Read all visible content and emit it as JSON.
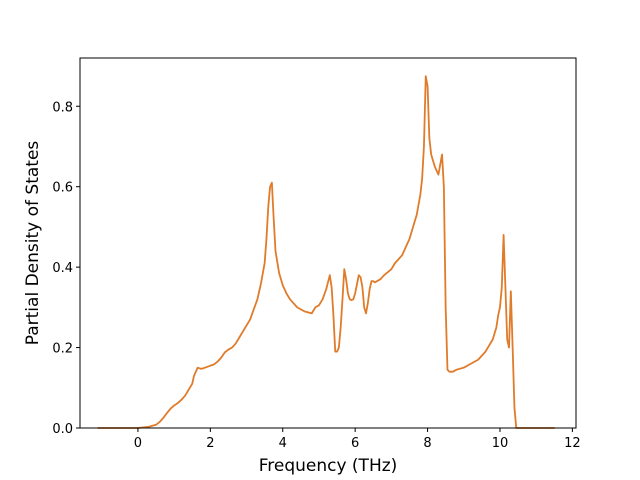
{
  "chart_data": {
    "type": "line",
    "title": "",
    "xlabel": "Frequency (THz)",
    "ylabel": "Partial Density of States",
    "xlim": [
      -1.6,
      12.1
    ],
    "ylim": [
      0.0,
      0.92
    ],
    "xticks": [
      0,
      2,
      4,
      6,
      8,
      10,
      12
    ],
    "yticks": [
      0.0,
      0.2,
      0.4,
      0.6,
      0.8
    ],
    "xtick_labels": [
      "0",
      "2",
      "4",
      "6",
      "8",
      "10",
      "12"
    ],
    "ytick_labels": [
      "0.0",
      "0.2",
      "0.4",
      "0.6",
      "0.8"
    ],
    "grid": false,
    "legend": "none",
    "series": [
      {
        "color": "#e07b2a",
        "x": [
          -1.1,
          0.0,
          0.3,
          0.5,
          0.6,
          0.7,
          0.8,
          0.9,
          1.0,
          1.1,
          1.2,
          1.3,
          1.4,
          1.5,
          1.55,
          1.65,
          1.75,
          1.85,
          2.0,
          2.1,
          2.2,
          2.3,
          2.4,
          2.5,
          2.6,
          2.7,
          2.8,
          3.0,
          3.1,
          3.2,
          3.3,
          3.4,
          3.5,
          3.55,
          3.6,
          3.65,
          3.7,
          3.75,
          3.8,
          3.9,
          4.0,
          4.1,
          4.2,
          4.4,
          4.6,
          4.8,
          4.9,
          5.0,
          5.1,
          5.2,
          5.3,
          5.35,
          5.4,
          5.45,
          5.5,
          5.55,
          5.6,
          5.65,
          5.7,
          5.75,
          5.8,
          5.85,
          5.9,
          5.95,
          6.0,
          6.1,
          6.15,
          6.2,
          6.25,
          6.3,
          6.35,
          6.4,
          6.45,
          6.5,
          6.55,
          6.6,
          6.7,
          6.8,
          7.0,
          7.1,
          7.2,
          7.3,
          7.4,
          7.5,
          7.6,
          7.7,
          7.8,
          7.85,
          7.9,
          7.95,
          8.0,
          8.05,
          8.1,
          8.2,
          8.3,
          8.4,
          8.45,
          8.5,
          8.55,
          8.6,
          8.7,
          8.8,
          9.0,
          9.2,
          9.4,
          9.6,
          9.8,
          9.9,
          9.95,
          10.0,
          10.05,
          10.1,
          10.15,
          10.2,
          10.25,
          10.3,
          10.35,
          10.4,
          10.45,
          11.5
        ],
        "values": [
          0.0,
          0.0,
          0.003,
          0.008,
          0.015,
          0.025,
          0.037,
          0.048,
          0.056,
          0.062,
          0.07,
          0.08,
          0.095,
          0.11,
          0.13,
          0.15,
          0.147,
          0.15,
          0.155,
          0.158,
          0.165,
          0.175,
          0.188,
          0.195,
          0.2,
          0.21,
          0.225,
          0.255,
          0.27,
          0.295,
          0.32,
          0.36,
          0.41,
          0.47,
          0.55,
          0.6,
          0.61,
          0.52,
          0.44,
          0.385,
          0.355,
          0.335,
          0.32,
          0.3,
          0.29,
          0.285,
          0.3,
          0.305,
          0.32,
          0.345,
          0.38,
          0.35,
          0.28,
          0.19,
          0.19,
          0.2,
          0.25,
          0.32,
          0.395,
          0.37,
          0.335,
          0.32,
          0.318,
          0.32,
          0.335,
          0.38,
          0.375,
          0.35,
          0.3,
          0.285,
          0.31,
          0.345,
          0.365,
          0.365,
          0.362,
          0.365,
          0.37,
          0.38,
          0.395,
          0.41,
          0.42,
          0.43,
          0.45,
          0.47,
          0.5,
          0.53,
          0.58,
          0.62,
          0.7,
          0.875,
          0.85,
          0.72,
          0.68,
          0.65,
          0.63,
          0.68,
          0.6,
          0.3,
          0.145,
          0.14,
          0.14,
          0.145,
          0.15,
          0.16,
          0.17,
          0.19,
          0.22,
          0.25,
          0.28,
          0.3,
          0.35,
          0.48,
          0.35,
          0.22,
          0.2,
          0.34,
          0.2,
          0.05,
          0.0,
          0.0
        ]
      }
    ]
  }
}
